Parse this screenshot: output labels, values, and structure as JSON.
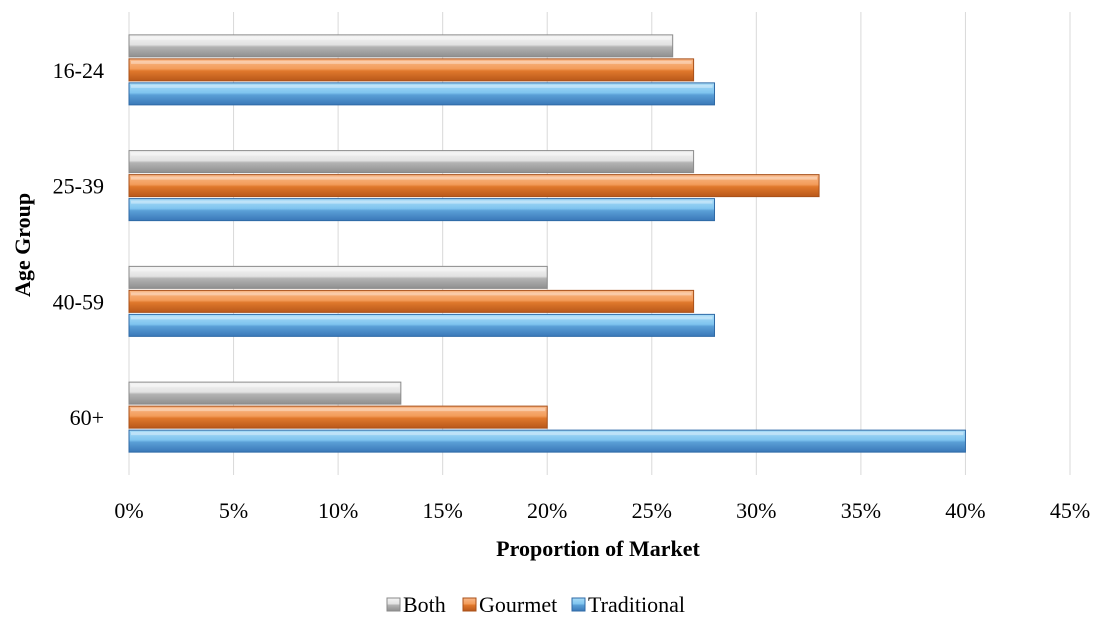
{
  "chart_data": {
    "type": "bar",
    "orientation": "horizontal",
    "categories": [
      "16-24",
      "25-39",
      "40-59",
      "60+"
    ],
    "series": [
      {
        "name": "Both",
        "values": [
          0.26,
          0.27,
          0.2,
          0.13
        ],
        "color": "#c8c8c8"
      },
      {
        "name": "Gourmet",
        "values": [
          0.27,
          0.33,
          0.27,
          0.2
        ],
        "color": "#ed7d31"
      },
      {
        "name": "Traditional",
        "values": [
          0.28,
          0.28,
          0.28,
          0.4
        ],
        "color": "#5b9bd5"
      }
    ],
    "xlabel": "Proportion of Market",
    "ylabel": "Age Group",
    "xlim": [
      0,
      0.45
    ],
    "x_ticks": [
      "0%",
      "5%",
      "10%",
      "15%",
      "20%",
      "25%",
      "30%",
      "35%",
      "40%",
      "45%"
    ],
    "grid": true,
    "legend_position": "bottom"
  }
}
